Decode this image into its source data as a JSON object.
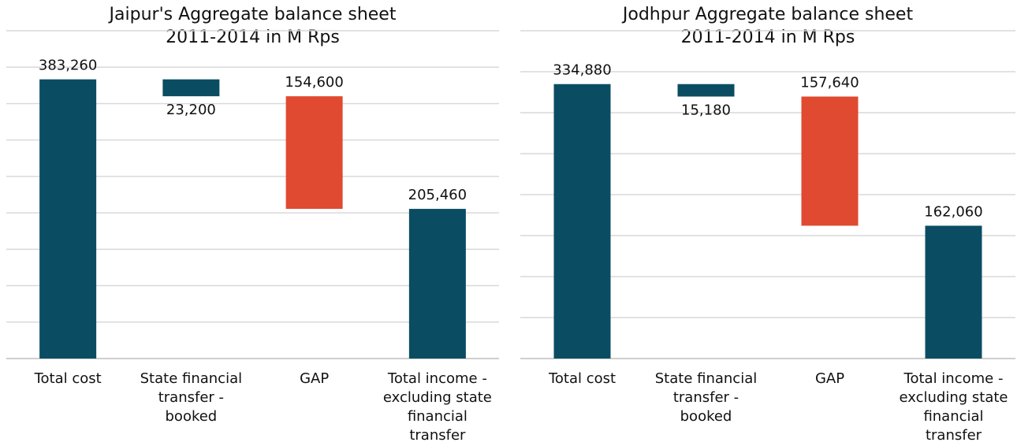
{
  "chart_data": [
    {
      "type": "waterfall",
      "title": [
        "Jaipur's Aggregate balance sheet",
        "2011-2014 in M Rps"
      ],
      "categories": [
        "Total cost",
        "State financial transfer - booked",
        "GAP",
        "Total income - excluding state financial transfer"
      ],
      "values": [
        383260,
        23200,
        154600,
        205460
      ],
      "value_labels": [
        "383,260",
        "23,200",
        "154,600",
        "205,460"
      ],
      "measure": [
        "total",
        "decrease",
        "decrease",
        "total"
      ],
      "colors": [
        "#0a4d62",
        "#0a4d62",
        "#e04a30",
        "#0a4d62"
      ],
      "ylim": [
        0,
        450000
      ],
      "yticks": [
        0,
        50000,
        100000,
        150000,
        200000,
        250000,
        300000,
        350000,
        400000,
        450000
      ],
      "grid": true
    },
    {
      "type": "waterfall",
      "title": [
        "Jodhpur Aggregate balance sheet",
        "2011-2014 in M Rps"
      ],
      "categories": [
        "Total cost",
        "State financial transfer - booked",
        "GAP",
        "Total income - excluding state financial transfer"
      ],
      "values": [
        334880,
        15180,
        157640,
        162060
      ],
      "value_labels": [
        "334,880",
        "15,180",
        "157,640",
        "162,060"
      ],
      "measure": [
        "total",
        "decrease",
        "decrease",
        "total"
      ],
      "colors": [
        "#0a4d62",
        "#0a4d62",
        "#e04a30",
        "#0a4d62"
      ],
      "ylim": [
        0,
        400000
      ],
      "yticks": [
        0,
        50000,
        100000,
        150000,
        200000,
        250000,
        300000,
        350000,
        400000
      ],
      "grid": true
    }
  ]
}
